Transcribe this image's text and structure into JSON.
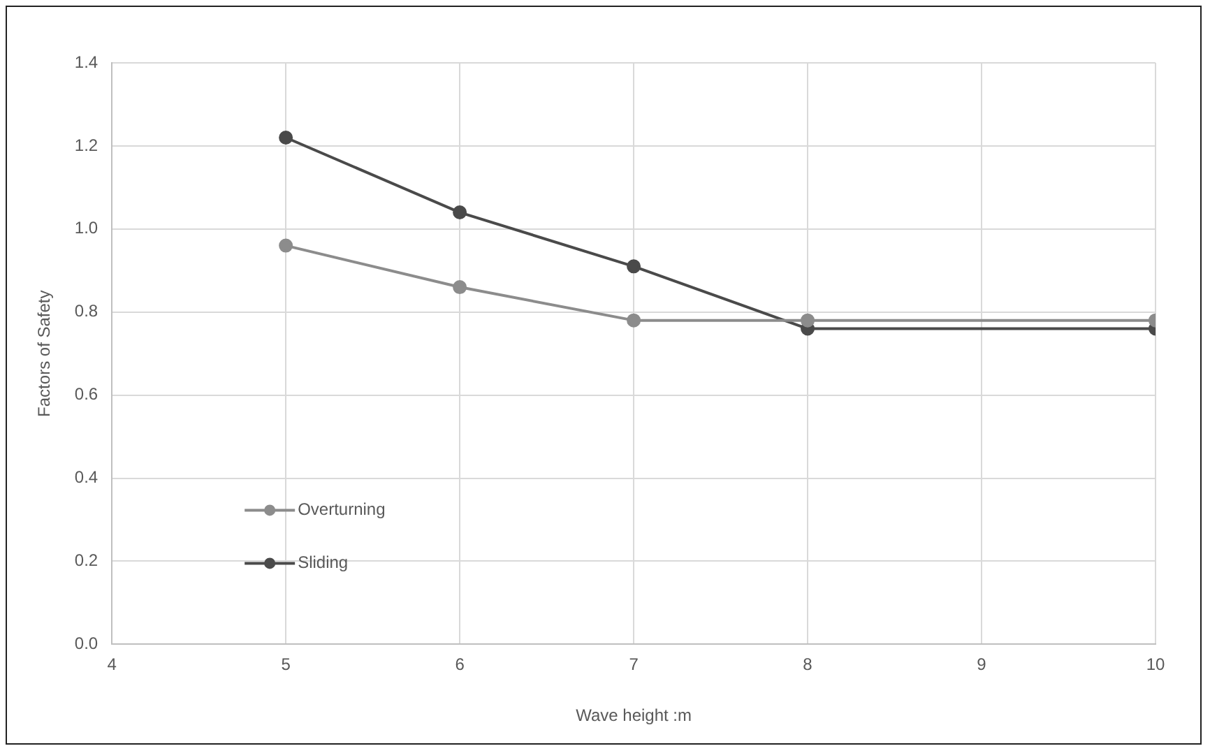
{
  "chart_data": {
    "type": "line",
    "xlabel": "Wave height :m",
    "ylabel": "Factors of Safety",
    "x": [
      5,
      6,
      7,
      8,
      10
    ],
    "series": [
      {
        "name": "Overturning",
        "color": "#8c8c8c",
        "values": [
          0.96,
          0.86,
          0.78,
          0.78,
          0.78
        ]
      },
      {
        "name": "Sliding",
        "color": "#4a4a4a",
        "values": [
          1.22,
          1.04,
          0.91,
          0.76,
          0.76
        ]
      }
    ],
    "xlim": [
      4,
      10
    ],
    "xticks": [
      4,
      5,
      6,
      7,
      8,
      9,
      10
    ],
    "ylim": [
      0,
      1.4
    ],
    "yticks": [
      {
        "value": 0,
        "label": "0.0"
      },
      {
        "value": 0.2,
        "label": "0.2"
      },
      {
        "value": 0.4,
        "label": "0.4"
      },
      {
        "value": 0.6,
        "label": "0.6"
      },
      {
        "value": 0.8,
        "label": "0.8"
      },
      {
        "value": 1,
        "label": "1.0"
      },
      {
        "value": 1.2,
        "label": "1.2"
      },
      {
        "value": 1.4,
        "label": "1.4"
      }
    ],
    "grid": true,
    "legend": "bottom left",
    "marker": "circle",
    "line_style": "solid"
  }
}
